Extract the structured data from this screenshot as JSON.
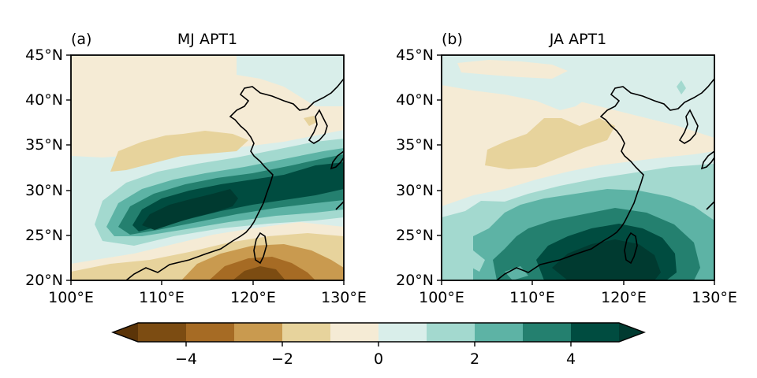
{
  "panels": [
    {
      "id": "a",
      "panel_label": "(a)",
      "title": "MJ APT1",
      "lon_ticks": [
        "100°E",
        "110°E",
        "120°E",
        "130°E"
      ],
      "lat_ticks": [
        "20°N",
        "25°N",
        "30°N",
        "35°N",
        "40°N",
        "45°N"
      ],
      "extent": {
        "lon": [
          100,
          130
        ],
        "lat": [
          20,
          45
        ]
      }
    },
    {
      "id": "b",
      "panel_label": "(b)",
      "title": "JA APT1",
      "lon_ticks": [
        "100°E",
        "110°E",
        "120°E",
        "130°E"
      ],
      "lat_ticks": [
        "20°N",
        "25°N",
        "30°N",
        "35°N",
        "40°N",
        "45°N"
      ],
      "extent": {
        "lon": [
          100,
          130
        ],
        "lat": [
          20,
          45
        ]
      }
    }
  ],
  "colorbar": {
    "tick_labels": [
      "−4",
      "−2",
      "0",
      "2",
      "4"
    ],
    "tick_values": [
      -4,
      -2,
      0,
      2,
      4
    ],
    "levels": [
      -5,
      -4,
      -3,
      -2,
      -1,
      0,
      1,
      2,
      3,
      4,
      5
    ],
    "extend": "both",
    "colors": [
      "#5b3408",
      "#7c4c12",
      "#a66b24",
      "#c99a4f",
      "#e7d39c",
      "#f5ebd5",
      "#d9eeea",
      "#a3d9cf",
      "#5db3a5",
      "#24806f",
      "#004c40",
      "#003a30"
    ]
  }
}
